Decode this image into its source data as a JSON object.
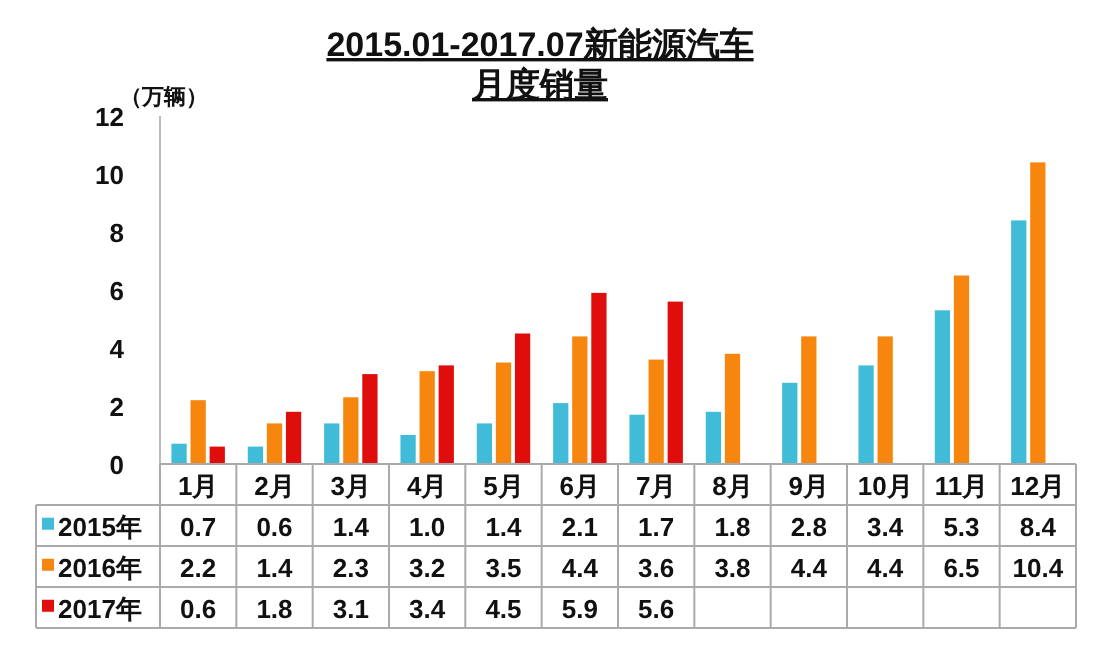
{
  "chart_data": {
    "type": "bar",
    "title": "2015.01-2017.07新能源汽车",
    "subtitle": "月度销量",
    "ylabel": "（万辆）",
    "categories": [
      "1月",
      "2月",
      "3月",
      "4月",
      "5月",
      "6月",
      "7月",
      "8月",
      "9月",
      "10月",
      "11月",
      "12月"
    ],
    "series": [
      {
        "name": "2015年",
        "color": "#40bcd8",
        "values": [
          0.7,
          0.6,
          1.4,
          1.0,
          1.4,
          2.1,
          1.7,
          1.8,
          2.8,
          3.4,
          5.3,
          8.4
        ],
        "value_labels": [
          "0.7",
          "0.6",
          "1.4",
          "1.0",
          "1.4",
          "2.1",
          "1.7",
          "1.8",
          "2.8",
          "3.4",
          "5.3",
          "8.4"
        ]
      },
      {
        "name": "2016年",
        "color": "#f7860f",
        "values": [
          2.2,
          1.4,
          2.3,
          3.2,
          3.5,
          4.4,
          3.6,
          3.8,
          4.4,
          4.4,
          6.5,
          10.4
        ]
      },
      {
        "name": "2017年",
        "color": "#e00d0d",
        "values": [
          0.6,
          1.8,
          3.1,
          3.4,
          4.5,
          5.9,
          5.6,
          null,
          null,
          null,
          null,
          null
        ]
      }
    ],
    "ylim": [
      0,
      12
    ],
    "yticks": [
      0,
      2,
      4,
      6,
      8,
      10,
      12
    ],
    "grid": false,
    "data_labels": true,
    "legend": "bottom"
  }
}
